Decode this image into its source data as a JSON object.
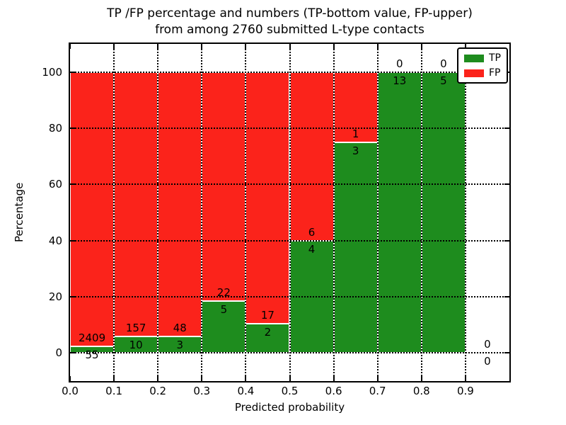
{
  "title_line1": "TP /FP percentage and numbers (TP-bottom value, FP-upper)",
  "title_line2": "from among 2760 submitted L-type contacts",
  "ylabel": "Percentage",
  "xlabel": "Predicted probability",
  "legend": {
    "items": [
      {
        "label": "TP",
        "color": "#1e8c1e"
      },
      {
        "label": "FP",
        "color": "#fb231b"
      }
    ]
  },
  "colors": {
    "tp_green": "#1e8c1e",
    "fp_red": "#fb231b",
    "axis_black": "#000000",
    "background": "#ffffff"
  },
  "chart_data": {
    "type": "bar",
    "stacked": true,
    "normalized_to_percent": 100,
    "title": "TP /FP percentage and numbers (TP-bottom value, FP-upper) from among 2760 submitted L-type contacts",
    "xlabel": "Predicted probability",
    "ylabel": "Percentage",
    "grid": true,
    "legend_position": "upper right",
    "xlim": [
      0.0,
      1.0
    ],
    "ylim": [
      -10,
      110
    ],
    "bin_edges": [
      0.0,
      0.1,
      0.2,
      0.3,
      0.4,
      0.5,
      0.6,
      0.7,
      0.8,
      0.9,
      1.0
    ],
    "xtick_values": [
      0.0,
      0.1,
      0.2,
      0.3,
      0.4,
      0.5,
      0.6,
      0.7,
      0.8,
      0.9
    ],
    "xtick_labels": [
      "0.0",
      "0.1",
      "0.2",
      "0.3",
      "0.4",
      "0.5",
      "0.6",
      "0.7",
      "0.8",
      "0.9"
    ],
    "ytick_values": [
      0,
      20,
      40,
      60,
      80,
      100
    ],
    "ytick_labels": [
      "0",
      "20",
      "40",
      "60",
      "80",
      "100"
    ],
    "series": [
      {
        "name": "TP",
        "color": "#1e8c1e",
        "counts": [
          55,
          10,
          3,
          5,
          2,
          4,
          3,
          13,
          5,
          0
        ]
      },
      {
        "name": "FP",
        "color": "#fb231b",
        "counts": [
          2409,
          157,
          48,
          22,
          17,
          6,
          1,
          0,
          0,
          0
        ]
      }
    ],
    "tp_percent_by_bin": [
      2.23,
      5.99,
      5.88,
      18.52,
      10.53,
      40.0,
      75.0,
      100.0,
      100.0,
      null
    ],
    "total_contacts": 2760
  }
}
